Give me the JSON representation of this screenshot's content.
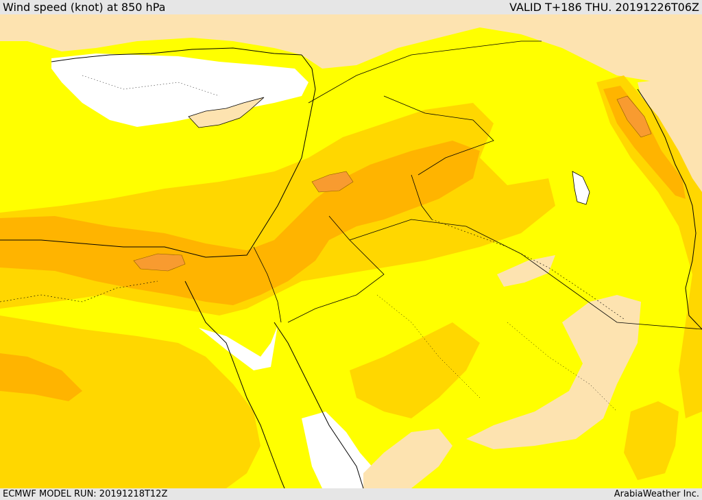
{
  "header": {
    "title": "Wind speed (knot) at 850 hPa",
    "valid": "VALID T+186 THU. 20191226T06Z"
  },
  "footer": {
    "model_run": "ECMWF MODEL RUN: 20191218T12Z",
    "credit": "ArabiaWeather Inc."
  },
  "map": {
    "colors": {
      "sea_white": "#ffffff",
      "speed_low": "#fde3b0",
      "speed_mid": "#ffff00",
      "speed_high": "#ffd700",
      "speed_higher": "#ffb400",
      "speed_max": "#f89b30",
      "coastline": "#000000",
      "border": "#000000"
    }
  }
}
